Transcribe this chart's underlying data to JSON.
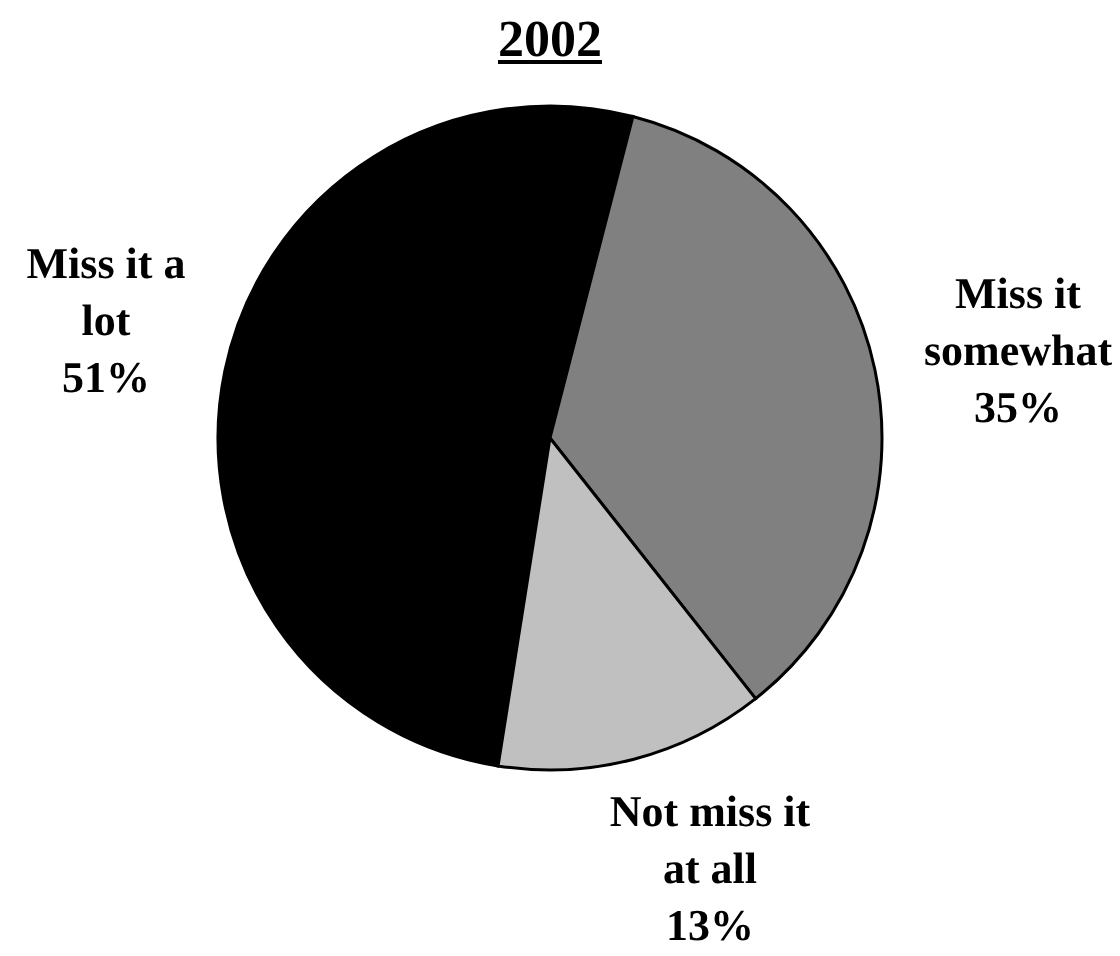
{
  "chart_data": {
    "type": "pie",
    "title": "2002",
    "categories": [
      "Miss it a lot",
      "Miss it somewhat",
      "Not miss it at all"
    ],
    "values": [
      51,
      35,
      13
    ],
    "colors": [
      "#000000",
      "#808080",
      "#c0c0c0"
    ],
    "value_labels": [
      "51%",
      "35%",
      "13%"
    ],
    "legend": false
  }
}
